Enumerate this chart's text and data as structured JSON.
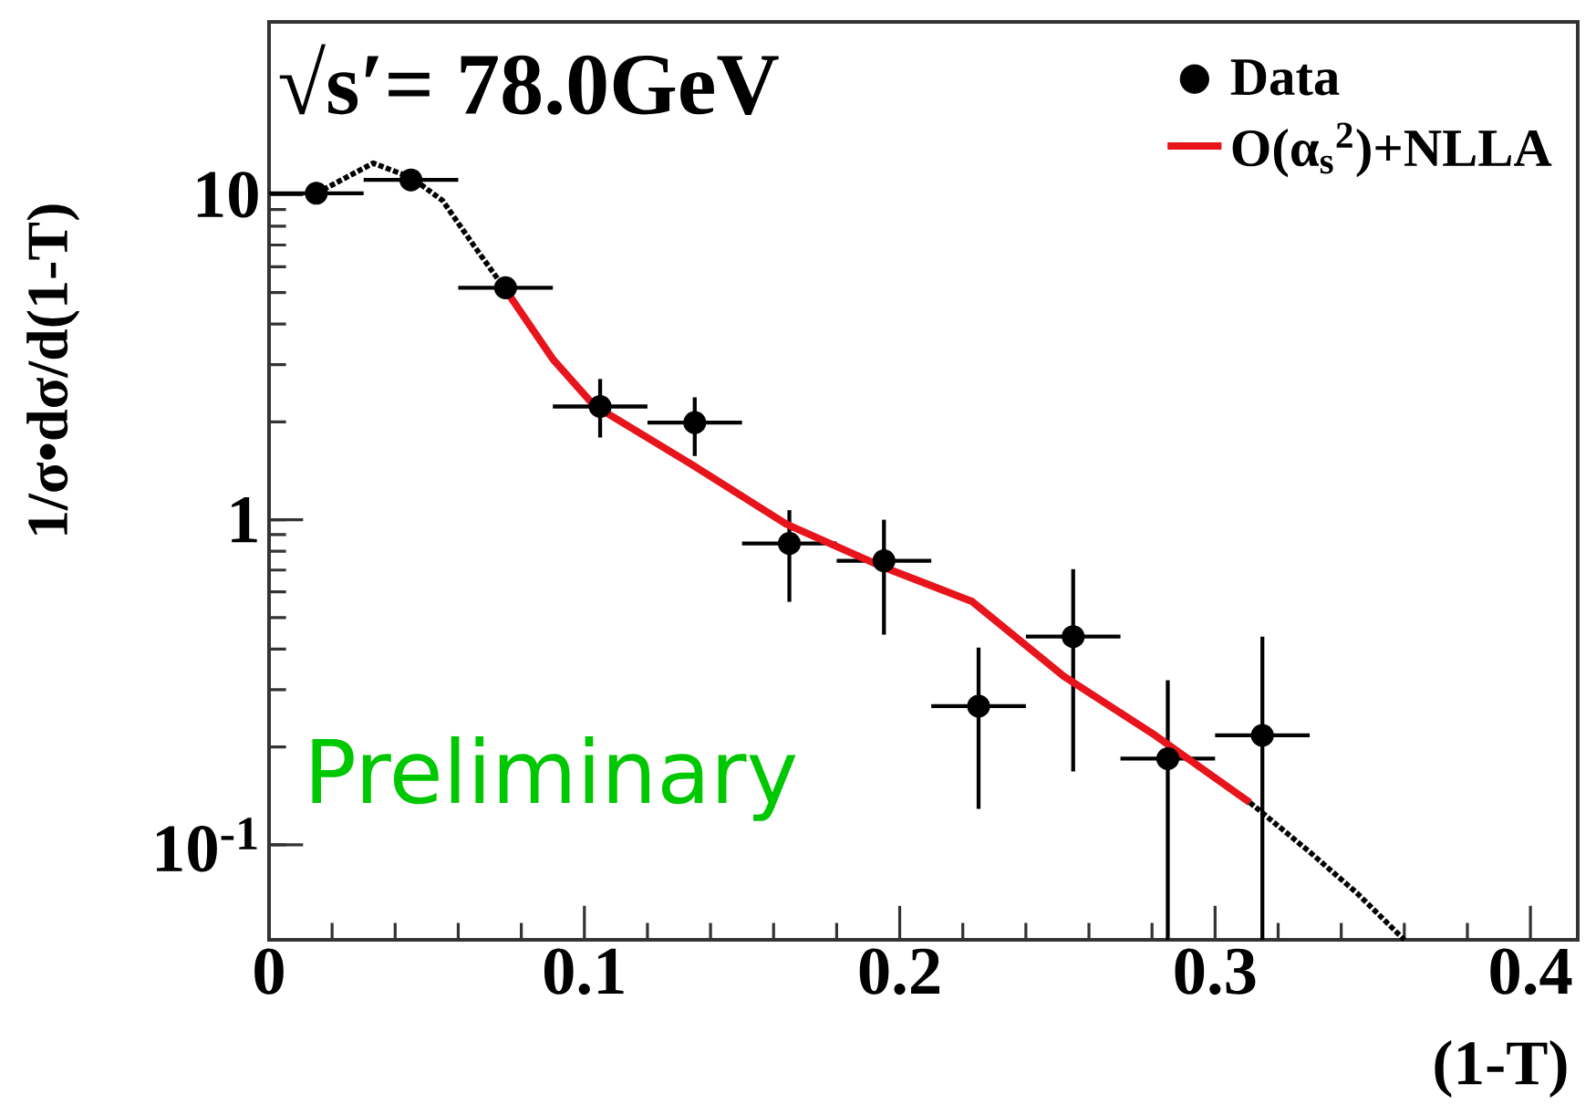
{
  "chart_data": {
    "type": "scatter",
    "xlabel": "(1-T)",
    "ylabel": "1/σ•dσ/d(1-T)",
    "annotations": [
      "√s′= 78.0GeV",
      "Preliminary"
    ],
    "log": "y",
    "xlim": [
      0,
      0.415
    ],
    "ylim": [
      0.051,
      34
    ],
    "xticks": [
      0,
      0.1,
      0.2,
      0.3,
      0.4
    ],
    "yticks": [
      {
        "value": 0.1,
        "label": "10$^{-1}$"
      },
      1,
      10
    ],
    "legend": "top right",
    "grid": false,
    "series": [
      {
        "name": "Data",
        "color": "#000000",
        "marker": "circle",
        "x": [
          0.015,
          0.045,
          0.075,
          0.105,
          0.135,
          0.165,
          0.195,
          0.225,
          0.255,
          0.285,
          0.315
        ],
        "values": [
          10.1,
          11.1,
          5.17,
          2.23,
          1.99,
          0.845,
          0.748,
          0.267,
          0.437,
          0.184,
          0.217
        ],
        "errors": [
          null,
          null,
          null,
          [
            1.79,
            2.71
          ],
          [
            1.57,
            2.38
          ],
          [
            0.559,
            1.07
          ],
          [
            0.443,
            1.0
          ],
          [
            0.129,
            0.404
          ],
          [
            0.168,
            0.705
          ],
          [
            0.051,
            0.321
          ],
          [
            0.051,
            0.437
          ]
        ],
        "xerrors": [
          0.015,
          0.015,
          0.015,
          0.015,
          0.015,
          0.015,
          0.015,
          0.015,
          0.015,
          0.015,
          0.015
        ]
      },
      {
        "name": "O(α$_{s}$$^{2}$)+NLLA",
        "type": "line",
        "color": "#e8141c",
        "marker": "none",
        "line_style": "solid",
        "x": [
          0.075,
          0.09,
          0.103,
          0.133,
          0.164,
          0.194,
          0.223,
          0.252,
          0.281,
          0.311
        ],
        "values": [
          5.1,
          3.12,
          2.25,
          1.5,
          0.97,
          0.72,
          0.56,
          0.33,
          0.217,
          0.135
        ]
      },
      {
        "type": "line",
        "color": "#000000",
        "marker": "none",
        "line_style": "dotted",
        "x": [
          0.015,
          0.033,
          0.045,
          0.055,
          0.065,
          0.075,
          0.2,
          0.311,
          0.33,
          0.345,
          0.36
        ],
        "values": [
          10.1,
          12.5,
          11.3,
          9.6,
          6.96,
          5.1,
          null,
          0.135,
          0.095,
          0.071,
          0.051
        ]
      }
    ]
  }
}
